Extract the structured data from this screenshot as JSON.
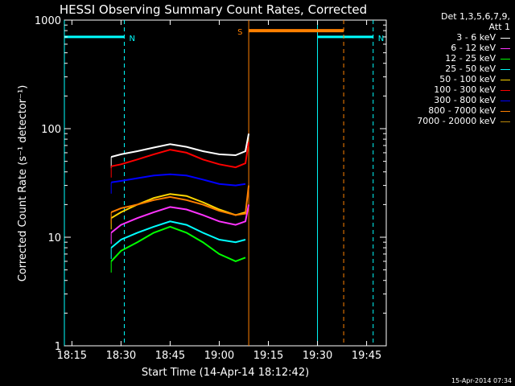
{
  "chart_data": {
    "type": "line",
    "title": "HESSI Observing Summary Count Rates, Corrected",
    "xlabel": "Start Time (14-Apr-14 18:12:42)",
    "ylabel": "Corrected Count Rate (s⁻¹ detector⁻¹)",
    "yscale": "log",
    "ylim": [
      1,
      1000
    ],
    "xlim": [
      "18:12:42",
      "19:51:00"
    ],
    "x_ticks": [
      "18:15",
      "18:30",
      "18:45",
      "19:00",
      "19:15",
      "19:30",
      "19:45"
    ],
    "y_ticks": [
      "1",
      "10",
      "100",
      "1000"
    ],
    "detector_info": [
      "Det 1,3,5,6,7,9,",
      "Att 1"
    ],
    "footer_date": "15-Apr-2014 07:34",
    "legend_placement": "top-right, outside plot",
    "series": [
      {
        "name": "3 - 6 keV",
        "color": "#ffffff",
        "x": [
          "18:27",
          "18:30",
          "18:35",
          "18:40",
          "18:45",
          "18:50",
          "18:55",
          "19:00",
          "19:05",
          "19:08",
          "19:09"
        ],
        "values": [
          55,
          58,
          62,
          67,
          72,
          68,
          62,
          58,
          57,
          62,
          90
        ]
      },
      {
        "name": "6 - 12 keV",
        "color": "#ff33ff",
        "x": [
          "18:27",
          "18:30",
          "18:35",
          "18:40",
          "18:45",
          "18:50",
          "18:55",
          "19:00",
          "19:05",
          "19:08",
          "19:09"
        ],
        "values": [
          11,
          13,
          15,
          17,
          19,
          18,
          16,
          14,
          13,
          14,
          20
        ]
      },
      {
        "name": "12 - 25 keV",
        "color": "#00ff00",
        "x": [
          "18:27",
          "18:30",
          "18:35",
          "18:40",
          "18:45",
          "18:50",
          "18:55",
          "19:00",
          "19:05",
          "19:08"
        ],
        "values": [
          6,
          7.5,
          9,
          11,
          12.5,
          11,
          9,
          7,
          6,
          6.5
        ]
      },
      {
        "name": "25 - 50 keV",
        "color": "#00ffff",
        "x": [
          "18:27",
          "18:30",
          "18:35",
          "18:40",
          "18:45",
          "18:50",
          "18:55",
          "19:00",
          "19:05",
          "19:08"
        ],
        "values": [
          8,
          9.5,
          11,
          12.5,
          14,
          13,
          11,
          9.5,
          9,
          9.5
        ]
      },
      {
        "name": "50 - 100 keV",
        "color": "#ffd700",
        "x": [
          "18:27",
          "18:30",
          "18:35",
          "18:40",
          "18:45",
          "18:50",
          "18:55",
          "19:00",
          "19:05",
          "19:08"
        ],
        "values": [
          15,
          17,
          20,
          23,
          25,
          24,
          21,
          18,
          16,
          17
        ]
      },
      {
        "name": "100 - 300 keV",
        "color": "#ff0000",
        "x": [
          "18:27",
          "18:30",
          "18:35",
          "18:40",
          "18:45",
          "18:50",
          "18:55",
          "19:00",
          "19:05",
          "19:08",
          "19:09"
        ],
        "values": [
          45,
          47,
          52,
          58,
          64,
          60,
          52,
          47,
          44,
          48,
          75
        ]
      },
      {
        "name": "300 - 800 keV",
        "color": "#0000ff",
        "x": [
          "18:27",
          "18:30",
          "18:35",
          "18:40",
          "18:45",
          "18:50",
          "18:55",
          "19:00",
          "19:05",
          "19:08"
        ],
        "values": [
          32,
          33,
          35,
          37,
          38,
          37,
          34,
          31,
          30,
          31
        ]
      },
      {
        "name": "800 - 7000 keV",
        "color": "#ff8000",
        "x": [
          "18:27",
          "18:30",
          "18:35",
          "18:40",
          "18:45",
          "18:50",
          "18:55",
          "19:00",
          "19:05",
          "19:08",
          "19:09"
        ],
        "values": [
          17,
          18.5,
          20,
          22,
          23.5,
          22,
          20,
          17.5,
          16,
          16.5,
          30
        ]
      },
      {
        "name": "7000 - 20000 keV",
        "color": "#b8860b",
        "x": [],
        "values": []
      }
    ],
    "annotations": [
      {
        "label": "N",
        "type": "night",
        "color": "#00ffff",
        "start": "18:12:42",
        "end": "18:31",
        "level": 700
      },
      {
        "label": "N",
        "type": "night",
        "color": "#00ffff",
        "start": "19:30",
        "end": "19:47",
        "level": 700
      },
      {
        "label": "S",
        "type": "saa",
        "color": "#ff8000",
        "start": "19:09",
        "end": "19:38",
        "level": 800
      }
    ]
  }
}
